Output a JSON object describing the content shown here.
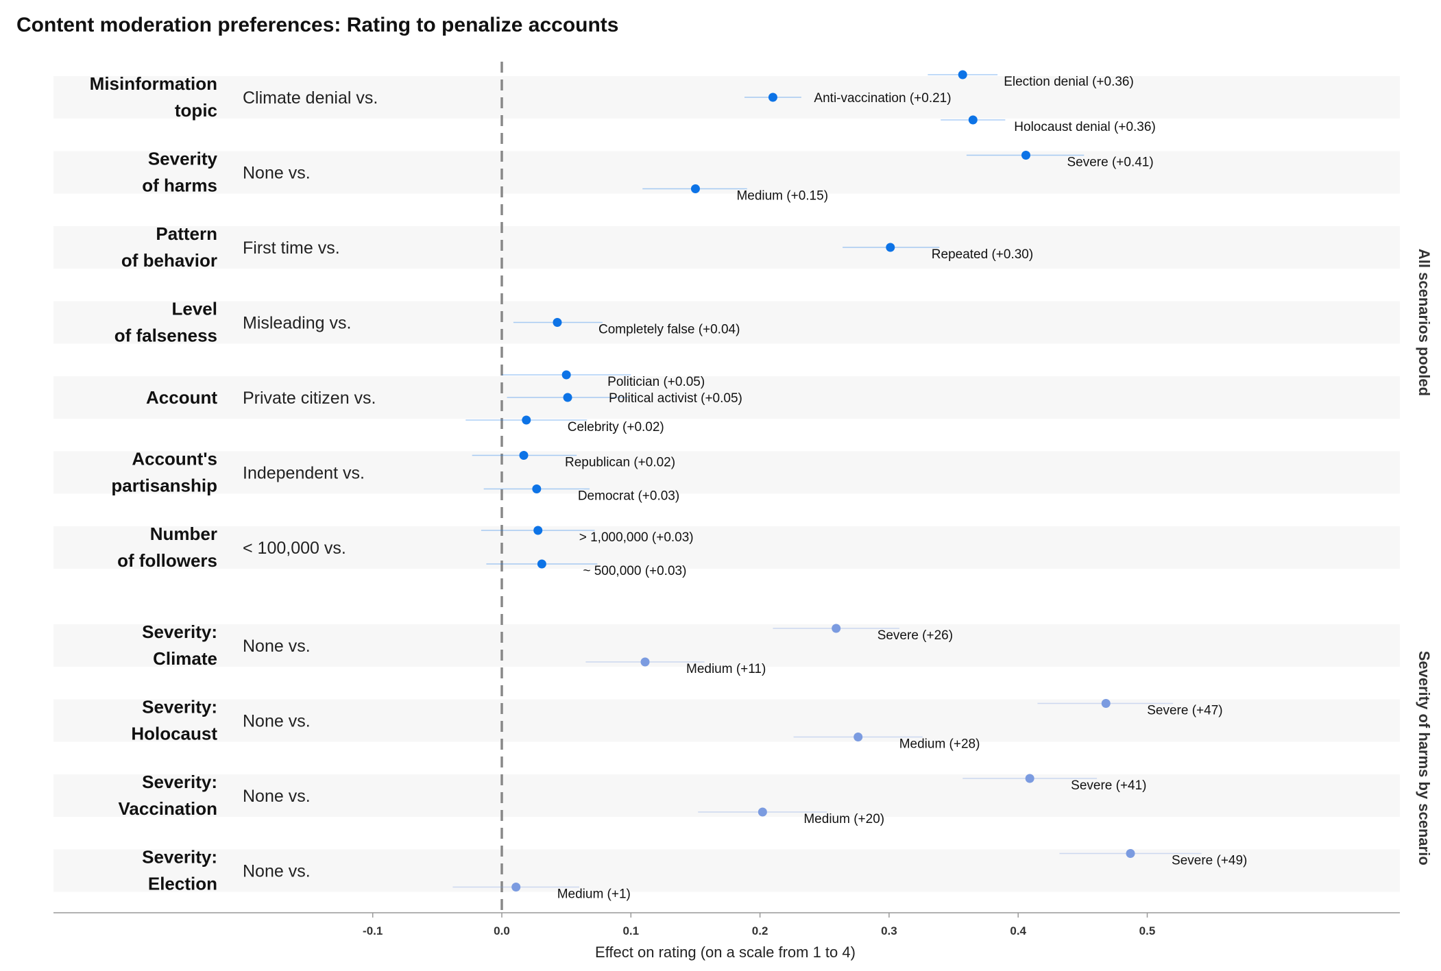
{
  "chart_data": {
    "type": "scatter",
    "title": "Content moderation preferences: Rating to penalize accounts",
    "xlabel": "Effect on rating (on a scale from 1 to 4)",
    "xlim": [
      -0.1,
      0.5
    ],
    "xticks": [
      -0.1,
      0.0,
      0.1,
      0.2,
      0.3,
      0.4,
      0.5
    ],
    "xtick_labels": [
      "-0.1",
      "0.0",
      "0.1",
      "0.2",
      "0.3",
      "0.4",
      "0.5"
    ],
    "reference_line": 0.0,
    "colors": {
      "pooled": "#0d73e6",
      "by_scenario": "#7b9be0",
      "band": "#f7f7f7",
      "ref_line": "#888888"
    },
    "facets": [
      {
        "label": "All scenarios pooled",
        "rows": [
          {
            "label_lines": [
              "Misinformation",
              "topic"
            ],
            "baseline": "Climate denial vs.",
            "points": [
              {
                "label": "Election denial (+0.36)",
                "value": 0.357,
                "ci": [
                  0.33,
                  0.384
                ]
              },
              {
                "label": "Anti-vaccination (+0.21)",
                "value": 0.21,
                "ci": [
                  0.188,
                  0.232
                ]
              },
              {
                "label": "Holocaust denial (+0.36)",
                "value": 0.365,
                "ci": [
                  0.34,
                  0.39
                ]
              }
            ]
          },
          {
            "label_lines": [
              "Severity",
              "of harms"
            ],
            "baseline": "None vs.",
            "points": [
              {
                "label": "Severe (+0.41)",
                "value": 0.406,
                "ci": [
                  0.36,
                  0.451
                ]
              },
              {
                "label": "Medium (+0.15)",
                "value": 0.15,
                "ci": [
                  0.109,
                  0.19
                ]
              }
            ]
          },
          {
            "label_lines": [
              "Pattern",
              "of behavior"
            ],
            "baseline": "First time vs.",
            "points": [
              {
                "label": "Repeated (+0.30)",
                "value": 0.301,
                "ci": [
                  0.264,
                  0.339
                ]
              }
            ]
          },
          {
            "label_lines": [
              "Level",
              "of falseness"
            ],
            "baseline": "Misleading vs.",
            "points": [
              {
                "label": "Completely false (+0.04)",
                "value": 0.043,
                "ci": [
                  0.009,
                  0.078
                ]
              }
            ]
          },
          {
            "label_lines": [
              "Account"
            ],
            "baseline": "Private citizen vs.",
            "points": [
              {
                "label": "Politician (+0.05)",
                "value": 0.05,
                "ci": [
                  0.0,
                  0.1
                ]
              },
              {
                "label": "Political activist (+0.05)",
                "value": 0.051,
                "ci": [
                  0.004,
                  0.098
                ]
              },
              {
                "label": "Celebrity (+0.02)",
                "value": 0.019,
                "ci": [
                  -0.028,
                  0.066
                ]
              }
            ]
          },
          {
            "label_lines": [
              "Account's",
              "partisanship"
            ],
            "baseline": "Independent vs.",
            "points": [
              {
                "label": "Republican (+0.02)",
                "value": 0.017,
                "ci": [
                  -0.023,
                  0.058
                ]
              },
              {
                "label": "Democrat (+0.03)",
                "value": 0.027,
                "ci": [
                  -0.014,
                  0.068
                ]
              }
            ]
          },
          {
            "label_lines": [
              "Number",
              "of followers"
            ],
            "baseline": "< 100,000 vs.",
            "points": [
              {
                "label": "> 1,000,000 (+0.03)",
                "value": 0.028,
                "ci": [
                  -0.016,
                  0.072
                ]
              },
              {
                "label": "~ 500,000 (+0.03)",
                "value": 0.031,
                "ci": [
                  -0.012,
                  0.074
                ]
              }
            ]
          }
        ]
      },
      {
        "label": "Severity of harms by scenario",
        "rows": [
          {
            "label_lines": [
              "Severity:",
              "Climate"
            ],
            "baseline": "None vs.",
            "points": [
              {
                "label": "Severe (+26)",
                "value": 0.259,
                "ci": [
                  0.21,
                  0.308
                ]
              },
              {
                "label": "Medium (+11)",
                "value": 0.111,
                "ci": [
                  0.065,
                  0.157
                ]
              }
            ]
          },
          {
            "label_lines": [
              "Severity:",
              "Holocaust"
            ],
            "baseline": "None vs.",
            "points": [
              {
                "label": "Severe (+47)",
                "value": 0.468,
                "ci": [
                  0.415,
                  0.52
                ]
              },
              {
                "label": "Medium (+28)",
                "value": 0.276,
                "ci": [
                  0.226,
                  0.326
                ]
              }
            ]
          },
          {
            "label_lines": [
              "Severity:",
              "Vaccination"
            ],
            "baseline": "None vs.",
            "points": [
              {
                "label": "Severe (+41)",
                "value": 0.409,
                "ci": [
                  0.357,
                  0.461
                ]
              },
              {
                "label": "Medium (+20)",
                "value": 0.202,
                "ci": [
                  0.152,
                  0.252
                ]
              }
            ]
          },
          {
            "label_lines": [
              "Severity:",
              "Election"
            ],
            "baseline": "None vs.",
            "points": [
              {
                "label": "Severe (+49)",
                "value": 0.487,
                "ci": [
                  0.432,
                  0.542
                ]
              },
              {
                "label": "Medium (+1)",
                "value": 0.011,
                "ci": [
                  -0.038,
                  0.06
                ]
              }
            ]
          }
        ]
      }
    ]
  }
}
